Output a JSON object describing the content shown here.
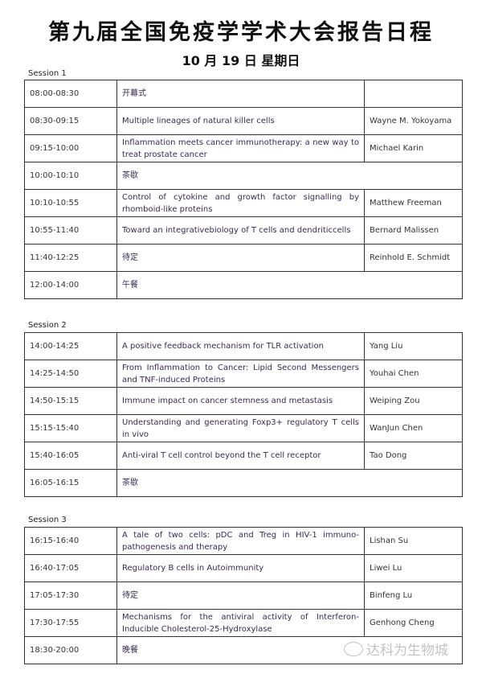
{
  "title": "第九届全国免疫学学术大会报告日程",
  "subtitle": "10 月 19 日  星期日",
  "sessions": [
    {
      "label": "Session 1",
      "rows": [
        {
          "time": "08:00-08:30",
          "title": "开幕式",
          "speaker": ""
        },
        {
          "time": "08:30-09:15",
          "title": "Multiple lineages of natural killer cells",
          "speaker": "Wayne M. Yokoyama"
        },
        {
          "time": "09:15-10:00",
          "title": "Inflammation meets cancer immunotherapy: a new way to treat prostate cancer",
          "speaker": "Michael Karin"
        },
        {
          "time": "10:00-10:10",
          "title": "茶歇"
        },
        {
          "time": "10:10-10:55",
          "title": "Control of cytokine and growth factor signalling by rhomboid-like proteins",
          "speaker": "Matthew Freeman"
        },
        {
          "time": "10:55-11:40",
          "title": "Toward an integrativebiology of T cells and dendriticcells",
          "speaker": "Bernard Malissen"
        },
        {
          "time": "11:40-12:25",
          "title": "待定",
          "speaker": "Reinhold E. Schmidt"
        },
        {
          "time": "12:00-14:00",
          "title": "午餐"
        }
      ]
    },
    {
      "label": "Session 2",
      "rows": [
        {
          "time": "14:00-14:25",
          "title": "A positive feedback mechanism for TLR activation",
          "speaker": "Yang Liu"
        },
        {
          "time": "14:25-14:50",
          "title": "From Inflammation to Cancer: Lipid Second Messengers and TNF-induced Proteins",
          "speaker": "Youhai Chen"
        },
        {
          "time": "14:50-15:15",
          "title": "Immune impact on cancer stemness and metastasis",
          "speaker": "Weiping Zou"
        },
        {
          "time": "15:15-15:40",
          "title": "Understanding and generating Foxp3+ regulatory T cells in vivo",
          "speaker": "WanJun Chen"
        },
        {
          "time": "15:40-16:05",
          "title": "Anti-viral T cell control beyond the T cell receptor",
          "speaker": "Tao Dong"
        },
        {
          "time": "16:05-16:15",
          "title": "茶歇"
        }
      ]
    },
    {
      "label": "Session 3",
      "rows": [
        {
          "time": "16:15-16:40",
          "title": "A tale of two cells: pDC and Treg in HIV-1 immuno-pathogenesis and therapy",
          "speaker": "Lishan Su"
        },
        {
          "time": "16:40-17:05",
          "title": "Regulatory B cells in Autoimmunity",
          "speaker": "Liwei Lu"
        },
        {
          "time": "17:05-17:30",
          "title": "待定",
          "speaker": "Binfeng Lu"
        },
        {
          "time": "17:30-17:55",
          "title": "Mechanisms for the antiviral activity of Interferon-Inducible Cholesterol-25-Hydroxylase",
          "speaker": "Genhong Cheng"
        },
        {
          "time": "18:30-20:00",
          "title": "晚餐"
        }
      ]
    }
  ],
  "watermark": {
    "text": "达科为生物城",
    "icon": "wechat-icon"
  }
}
